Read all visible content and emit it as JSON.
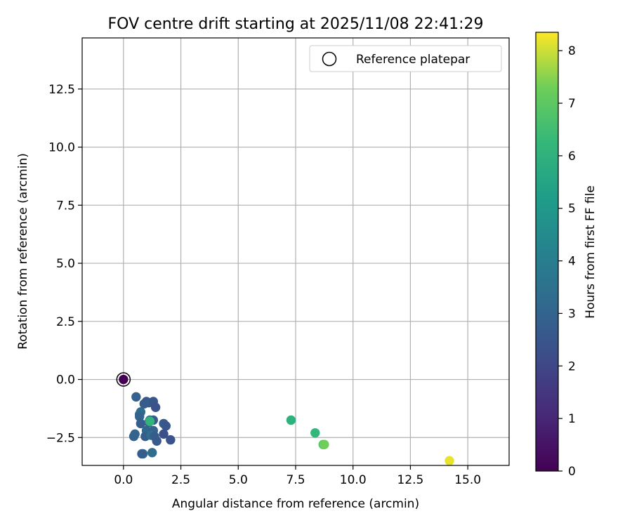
{
  "chart_data": {
    "type": "scatter",
    "title": "FOV centre drift starting at 2025/11/08 22:41:29",
    "xlabel": "Angular distance from reference (arcmin)",
    "ylabel": "Rotation from reference (arcmin)",
    "xlim": [
      -1.8,
      16.8
    ],
    "ylim": [
      -3.7,
      14.7
    ],
    "xticks": [
      0.0,
      2.5,
      5.0,
      7.5,
      10.0,
      12.5,
      15.0
    ],
    "xtick_labels": [
      "0.0",
      "2.5",
      "5.0",
      "7.5",
      "10.0",
      "12.5",
      "15.0"
    ],
    "yticks": [
      -2.5,
      0.0,
      2.5,
      5.0,
      7.5,
      10.0,
      12.5
    ],
    "ytick_labels": [
      "−2.5",
      "0.0",
      "2.5",
      "5.0",
      "7.5",
      "10.0",
      "12.5"
    ],
    "grid": true,
    "legend": {
      "position": "top-right",
      "entries": [
        "Reference platepar"
      ]
    },
    "colorbar": {
      "label": "Hours from first FF file",
      "colormap": "viridis",
      "range": [
        0,
        8.35
      ],
      "ticks": [
        0,
        1,
        2,
        3,
        4,
        5,
        6,
        7,
        8
      ],
      "tick_labels": [
        "0",
        "1",
        "2",
        "3",
        "4",
        "5",
        "6",
        "7",
        "8"
      ]
    },
    "reference_point": {
      "x": 0.0,
      "y": 0.0
    },
    "points": [
      {
        "x": 0.0,
        "y": 0.0,
        "hours": 0.0
      },
      {
        "x": 0.55,
        "y": -0.75,
        "hours": 2.9
      },
      {
        "x": 0.7,
        "y": -1.5,
        "hours": 3.1
      },
      {
        "x": 0.75,
        "y": -1.4,
        "hours": 3.3
      },
      {
        "x": 0.9,
        "y": -1.05,
        "hours": 2.8
      },
      {
        "x": 1.0,
        "y": -0.95,
        "hours": 2.6
      },
      {
        "x": 1.1,
        "y": -1.0,
        "hours": 2.7
      },
      {
        "x": 1.3,
        "y": -0.95,
        "hours": 2.5
      },
      {
        "x": 1.4,
        "y": -1.2,
        "hours": 2.4
      },
      {
        "x": 0.7,
        "y": -1.6,
        "hours": 3.0
      },
      {
        "x": 0.75,
        "y": -1.9,
        "hours": 2.8
      },
      {
        "x": 1.15,
        "y": -1.75,
        "hours": 3.2
      },
      {
        "x": 1.3,
        "y": -1.75,
        "hours": 2.7
      },
      {
        "x": 1.1,
        "y": -1.85,
        "hours": 2.9
      },
      {
        "x": 1.75,
        "y": -1.9,
        "hours": 2.6
      },
      {
        "x": 1.85,
        "y": -2.0,
        "hours": 2.5
      },
      {
        "x": 1.0,
        "y": -2.2,
        "hours": 3.1
      },
      {
        "x": 1.3,
        "y": -2.2,
        "hours": 2.9
      },
      {
        "x": 0.95,
        "y": -2.45,
        "hours": 2.8
      },
      {
        "x": 1.2,
        "y": -2.4,
        "hours": 3.4
      },
      {
        "x": 1.35,
        "y": -2.45,
        "hours": 2.7
      },
      {
        "x": 1.45,
        "y": -2.65,
        "hours": 2.6
      },
      {
        "x": 1.75,
        "y": -2.35,
        "hours": 2.3
      },
      {
        "x": 2.05,
        "y": -2.6,
        "hours": 2.4
      },
      {
        "x": 0.45,
        "y": -2.45,
        "hours": 2.9
      },
      {
        "x": 0.5,
        "y": -2.35,
        "hours": 3.0
      },
      {
        "x": 0.85,
        "y": -3.2,
        "hours": 3.5
      },
      {
        "x": 0.8,
        "y": -3.2,
        "hours": 2.8
      },
      {
        "x": 1.25,
        "y": -3.15,
        "hours": 3.3
      },
      {
        "x": 1.15,
        "y": -1.8,
        "hours": 6.1
      },
      {
        "x": 7.3,
        "y": -1.75,
        "hours": 6.0
      },
      {
        "x": 8.35,
        "y": -2.3,
        "hours": 6.2
      },
      {
        "x": 8.7,
        "y": -2.8,
        "hours": 6.8
      },
      {
        "x": 8.75,
        "y": -2.8,
        "hours": 7.3
      },
      {
        "x": 14.2,
        "y": -3.5,
        "hours": 8.2
      }
    ]
  }
}
